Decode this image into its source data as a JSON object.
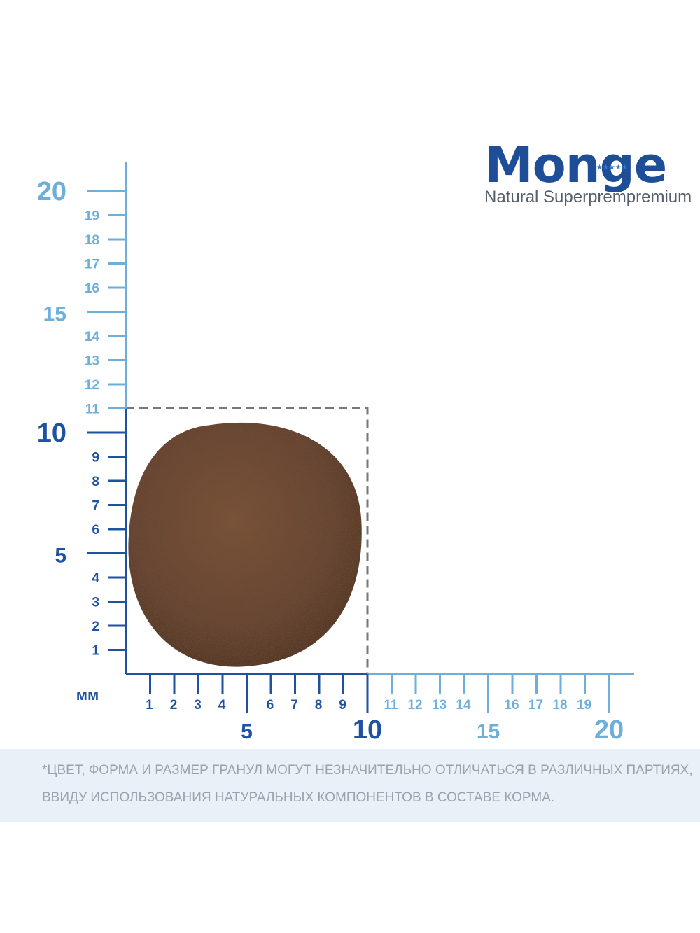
{
  "brand": {
    "name": "Monge",
    "tagline": "Natural Superprempremium",
    "stars": "★★★★★"
  },
  "ruler": {
    "unit": "мм",
    "y_labels": [
      "1",
      "2",
      "3",
      "4",
      "5",
      "6",
      "7",
      "8",
      "9",
      "10",
      "11",
      "12",
      "13",
      "14",
      "15",
      "16",
      "17",
      "18",
      "19",
      "20"
    ],
    "x_labels": [
      "1",
      "2",
      "3",
      "4",
      "5",
      "6",
      "7",
      "8",
      "9",
      "10",
      "11",
      "12",
      "13",
      "14",
      "15",
      "16",
      "17",
      "18",
      "19",
      "20"
    ],
    "major_ticks": [
      5,
      10,
      15,
      20
    ],
    "dark_range_max": 10,
    "colors": {
      "dark": "#1f52a0",
      "light": "#6eaedb"
    }
  },
  "pellet": {
    "shape": "round-kibble",
    "size_mm": 10,
    "color": "#6a4630"
  },
  "disclaimer": {
    "line1": "*ЦВЕТ, ФОРМА И РАЗМЕР ГРАНУЛ МОГУТ НЕЗНАЧИТЕЛЬНО ОТЛИЧАТЬСЯ В РАЗЛИЧНЫХ ПАРТИЯХ,",
    "line2": "ВВИДУ ИСПОЛЬЗОВАНИЯ НАТУРАЛЬНЫХ КОМПОНЕНТОВ В СОСТАВЕ КОРМА."
  }
}
